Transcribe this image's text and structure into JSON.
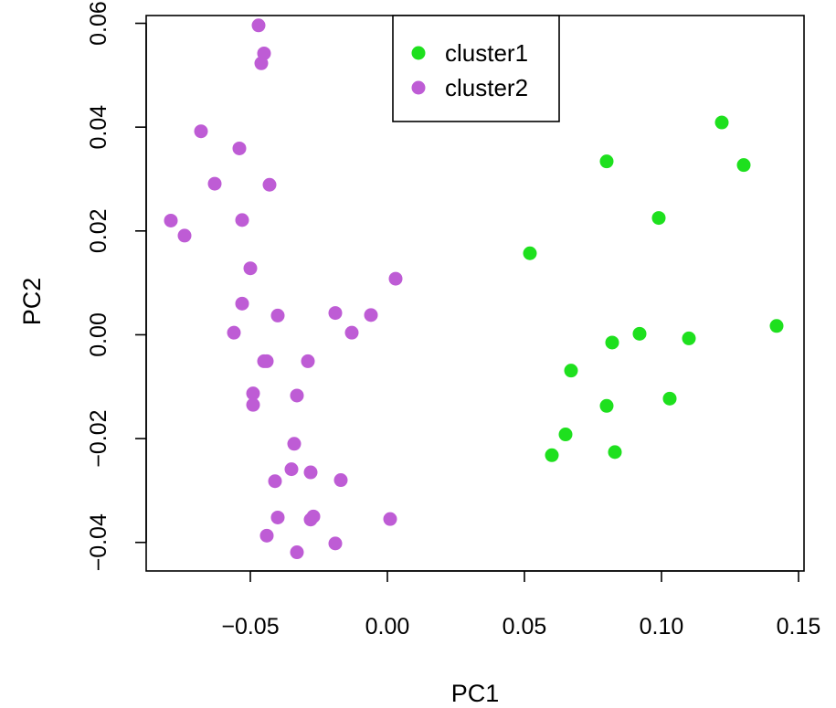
{
  "chart_data": {
    "type": "scatter",
    "title": "",
    "xlabel": "PC1",
    "ylabel": "PC2",
    "xlim": [
      -0.088,
      0.152
    ],
    "ylim": [
      -0.0455,
      0.0615
    ],
    "x_ticks": [
      -0.05,
      0.0,
      0.05,
      0.1,
      0.15
    ],
    "x_tick_labels": [
      "−0.05",
      "0.00",
      "0.05",
      "0.10",
      "0.15"
    ],
    "y_ticks": [
      -0.04,
      -0.02,
      0.0,
      0.02,
      0.04,
      0.06
    ],
    "y_tick_labels": [
      "−0.04",
      "−0.02",
      "0.00",
      "0.02",
      "0.04",
      "0.06"
    ],
    "grid": false,
    "legend": {
      "position": "top-center"
    },
    "series": [
      {
        "name": "cluster1",
        "color": "#1ee01e",
        "points": [
          [
            0.052,
            0.0157
          ],
          [
            0.06,
            -0.0232
          ],
          [
            0.065,
            -0.0192
          ],
          [
            0.067,
            -0.0069
          ],
          [
            0.08,
            0.0334
          ],
          [
            0.08,
            -0.0137
          ],
          [
            0.082,
            -0.0015
          ],
          [
            0.083,
            -0.0226
          ],
          [
            0.092,
            0.0002
          ],
          [
            0.099,
            0.0225
          ],
          [
            0.103,
            -0.0123
          ],
          [
            0.11,
            -0.0007
          ],
          [
            0.122,
            0.0409
          ],
          [
            0.13,
            0.0327
          ],
          [
            0.142,
            0.0017
          ]
        ]
      },
      {
        "name": "cluster2",
        "color": "#be5cd5",
        "points": [
          [
            -0.047,
            0.0596
          ],
          [
            -0.045,
            0.0542
          ],
          [
            -0.046,
            0.0523
          ],
          [
            -0.068,
            0.0392
          ],
          [
            -0.054,
            0.0359
          ],
          [
            -0.063,
            0.0291
          ],
          [
            -0.043,
            0.0289
          ],
          [
            -0.079,
            0.022
          ],
          [
            -0.053,
            0.0221
          ],
          [
            -0.074,
            0.0191
          ],
          [
            -0.05,
            0.0128
          ],
          [
            -0.053,
            0.006
          ],
          [
            -0.04,
            0.0037
          ],
          [
            -0.019,
            0.0042
          ],
          [
            -0.006,
            0.0038
          ],
          [
            0.003,
            0.0108
          ],
          [
            -0.056,
            0.0004
          ],
          [
            -0.013,
            0.0004
          ],
          [
            -0.045,
            -0.0051
          ],
          [
            -0.044,
            -0.0051
          ],
          [
            -0.029,
            -0.0051
          ],
          [
            -0.049,
            -0.0113
          ],
          [
            -0.033,
            -0.0117
          ],
          [
            -0.049,
            -0.0135
          ],
          [
            -0.034,
            -0.021
          ],
          [
            -0.035,
            -0.0259
          ],
          [
            -0.041,
            -0.0282
          ],
          [
            -0.028,
            -0.0265
          ],
          [
            -0.017,
            -0.028
          ],
          [
            -0.04,
            -0.0352
          ],
          [
            -0.027,
            -0.035
          ],
          [
            -0.028,
            -0.0356
          ],
          [
            0.001,
            -0.0355
          ],
          [
            -0.044,
            -0.0387
          ],
          [
            -0.019,
            -0.0402
          ],
          [
            -0.033,
            -0.0419
          ]
        ]
      }
    ]
  }
}
